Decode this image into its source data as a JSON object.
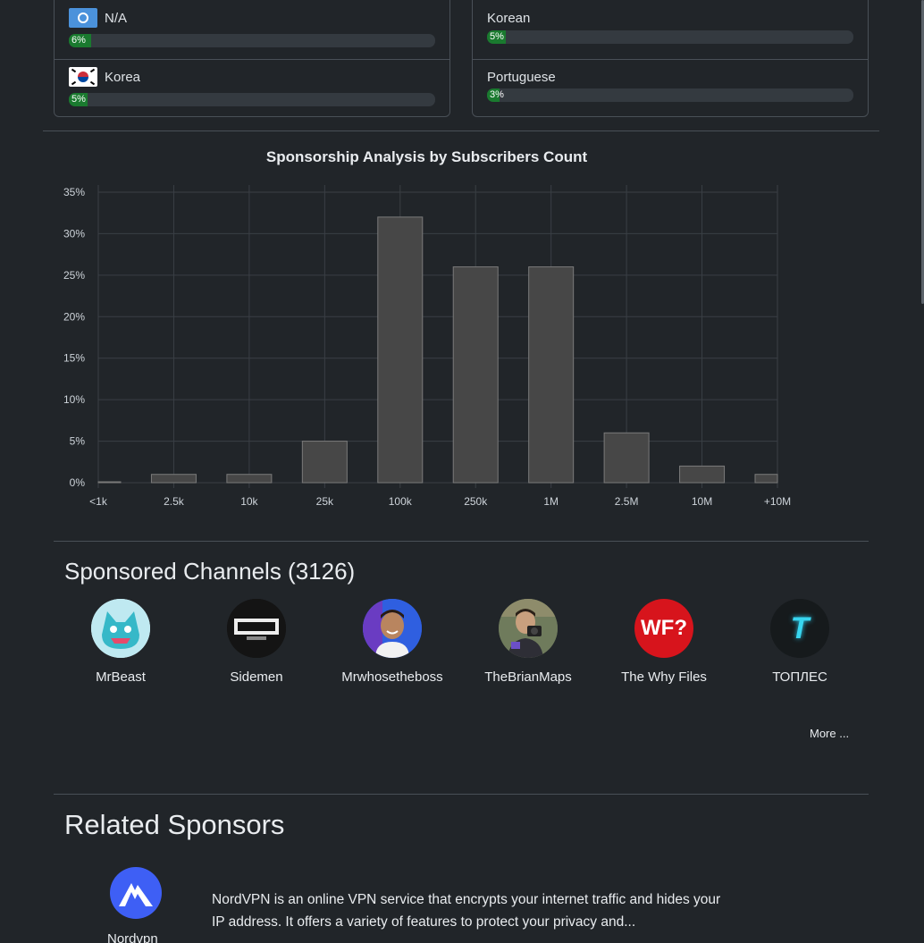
{
  "countries": [
    {
      "label": "N/A",
      "percent": 6,
      "percent_text": "6%",
      "flag": "un-flag"
    },
    {
      "label": "Korea",
      "percent": 5,
      "percent_text": "5%",
      "flag": "south-korea-flag"
    }
  ],
  "languages": [
    {
      "label": "Korean",
      "percent": 5,
      "percent_text": "5%"
    },
    {
      "label": "Portuguese",
      "percent": 3,
      "percent_text": "3%"
    }
  ],
  "chart_data": {
    "type": "bar",
    "title": "Sponsorship Analysis by Subscribers Count",
    "categories": [
      "<1k",
      "2.5k",
      "10k",
      "25k",
      "100k",
      "250k",
      "1M",
      "2.5M",
      "10M",
      "+10M"
    ],
    "values": [
      0,
      1,
      1,
      5,
      32,
      26,
      26,
      6,
      2,
      1
    ],
    "y_ticks": [
      "0%",
      "5%",
      "10%",
      "15%",
      "20%",
      "25%",
      "30%",
      "35%"
    ],
    "ylim": [
      0,
      35
    ],
    "grid": true,
    "bar_color": "#474747"
  },
  "sponsored_channels": {
    "title": "Sponsored Channels (3126)",
    "channels": [
      {
        "name": "MrBeast",
        "icon": "mrbeast-avatar"
      },
      {
        "name": "Sidemen",
        "icon": "sidemen-avatar"
      },
      {
        "name": "Mrwhosetheboss",
        "icon": "mrwhosetheboss-avatar"
      },
      {
        "name": "TheBrianMaps",
        "icon": "thebrianmaps-avatar"
      },
      {
        "name": "The Why Files",
        "icon": "the-why-files-avatar",
        "logo_text": "WF?"
      },
      {
        "name": "ТОПЛЕС",
        "icon": "toples-avatar",
        "logo_text": "T"
      }
    ],
    "more_label": "More ..."
  },
  "related_sponsors": {
    "title": "Related Sponsors",
    "items": [
      {
        "name": "Nordvpn",
        "icon": "nordvpn-logo",
        "description": "NordVPN is an online VPN service that encrypts your internet traffic and hides your IP address. It offers a variety of features to protect your privacy and..."
      }
    ]
  },
  "colors": {
    "background": "#212529",
    "border": "#495057",
    "progress_fill": "#1a7a2f",
    "nord_blue": "#3e5ff5"
  }
}
